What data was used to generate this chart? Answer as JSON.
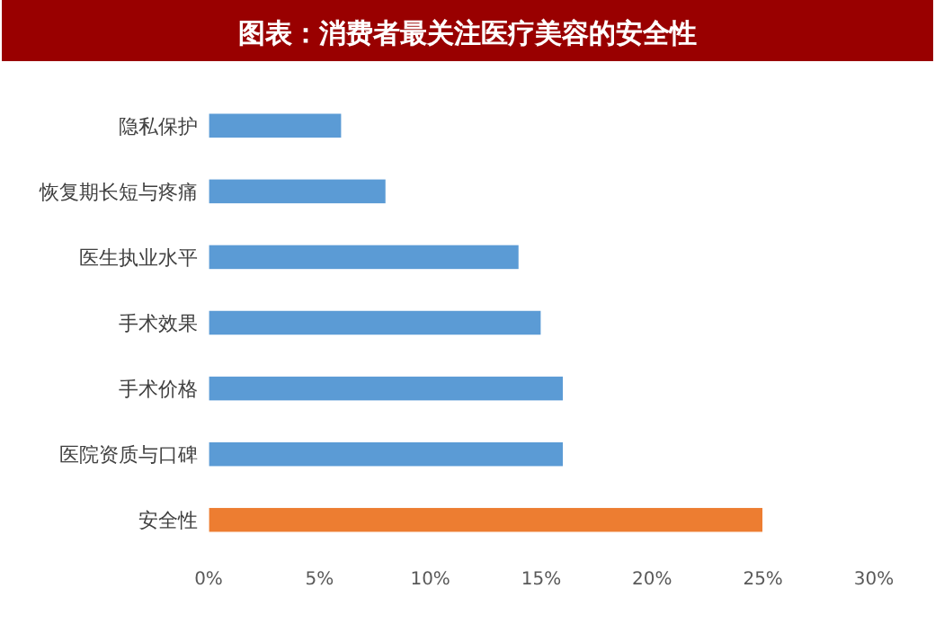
{
  "chart_data": {
    "type": "bar",
    "title": "图表：消费者最关注医疗美容的安全性",
    "orientation": "horizontal",
    "categories": [
      "隐私保护",
      "恢复期长短与疼痛",
      "医生执业水平",
      "手术效果",
      "手术价格",
      "医院资质与口碑",
      "安全性"
    ],
    "values": [
      6,
      8,
      14,
      15,
      16,
      16,
      25
    ],
    "colors": [
      "#5b9bd5",
      "#5b9bd5",
      "#5b9bd5",
      "#5b9bd5",
      "#5b9bd5",
      "#5b9bd5",
      "#ed7d31"
    ],
    "xlim": [
      0,
      30
    ],
    "xticks": [
      {
        "value": 0,
        "label": "0%"
      },
      {
        "value": 5,
        "label": "5%"
      },
      {
        "value": 10,
        "label": "10%"
      },
      {
        "value": 15,
        "label": "15%"
      },
      {
        "value": 20,
        "label": "20%"
      },
      {
        "value": 25,
        "label": "25%"
      },
      {
        "value": 30,
        "label": "30%"
      }
    ],
    "grid": false
  }
}
